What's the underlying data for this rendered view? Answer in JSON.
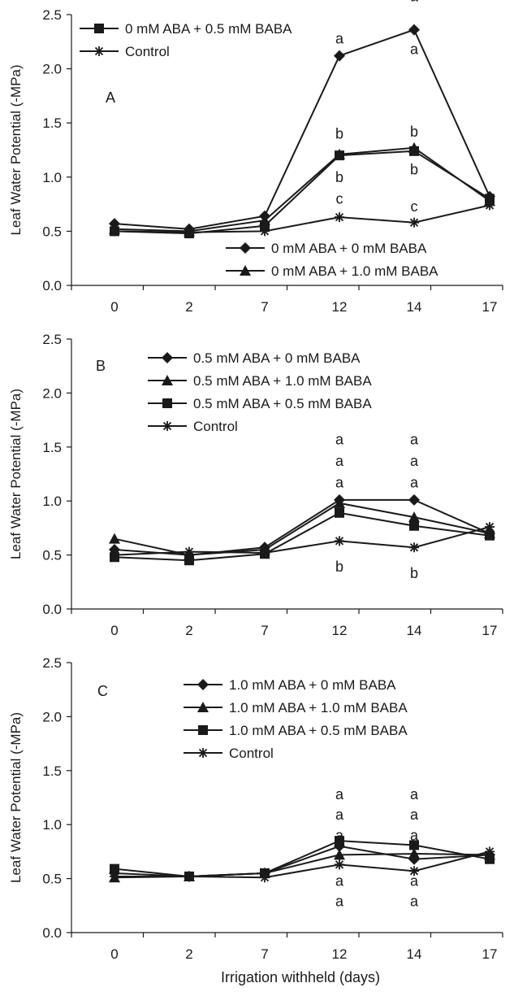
{
  "figure": {
    "xlabel": "Irrigation withheld (days)"
  },
  "colors": {
    "ink": "#1a1a1a",
    "background": "#ffffff"
  },
  "chart_data": [
    {
      "type": "line",
      "panel_label": "A",
      "ylabel": "Leaf Water Potential (-MPa)",
      "xlabel": "",
      "categories": [
        "0",
        "2",
        "7",
        "12",
        "14",
        "17"
      ],
      "ylim": [
        0,
        2.5
      ],
      "yticks": [
        "0.0",
        "0.5",
        "1.0",
        "1.5",
        "2.0",
        "2.5"
      ],
      "grid": false,
      "legend_top": [
        "0 mM ABA + 0.5 mM BABA",
        "Control"
      ],
      "legend_bottom": [
        "0 mM ABA + 0 mM BABA",
        "0 mM ABA + 1.0 mM BABA"
      ],
      "series": [
        {
          "name": "0 mM ABA + 0 mM BABA",
          "marker": "diamond",
          "values": [
            0.57,
            0.52,
            0.64,
            2.12,
            2.36,
            0.82
          ]
        },
        {
          "name": "0 mM ABA + 1.0 mM BABA",
          "marker": "triangle",
          "values": [
            0.52,
            0.5,
            0.6,
            1.21,
            1.27,
            0.78
          ]
        },
        {
          "name": "0 mM ABA + 0.5 mM BABA",
          "marker": "square",
          "values": [
            0.5,
            0.48,
            0.55,
            1.2,
            1.24,
            0.8
          ]
        },
        {
          "name": "Control",
          "marker": "star",
          "values": [
            0.5,
            0.49,
            0.5,
            0.63,
            0.58,
            0.74
          ]
        }
      ],
      "annotations": [
        {
          "text": "a",
          "x": "12",
          "y": 2.28
        },
        {
          "text": "a",
          "x": "14",
          "y": 2.67
        },
        {
          "text": "a",
          "x": "14",
          "y": 2.18
        },
        {
          "text": "b",
          "x": "12",
          "y": 1.4
        },
        {
          "text": "b",
          "x": "12",
          "y": 1.0
        },
        {
          "text": "b",
          "x": "14",
          "y": 1.42
        },
        {
          "text": "b",
          "x": "14",
          "y": 1.07
        },
        {
          "text": "c",
          "x": "12",
          "y": 0.8
        },
        {
          "text": "c",
          "x": "14",
          "y": 0.73
        }
      ]
    },
    {
      "type": "line",
      "panel_label": "B",
      "ylabel": "Leaf Water Potential (-MPa)",
      "xlabel": "",
      "categories": [
        "0",
        "2",
        "7",
        "12",
        "14",
        "17"
      ],
      "ylim": [
        0,
        2.5
      ],
      "yticks": [
        "0.0",
        "0.5",
        "1.0",
        "1.5",
        "2.0",
        "2.5"
      ],
      "grid": false,
      "legend_top": [
        "0.5 mM ABA + 0 mM BABA",
        "0.5 mM ABA + 1.0 mM BABA",
        "0.5 mM ABA + 0.5 mM BABA",
        "Control"
      ],
      "series": [
        {
          "name": "0.5 mM ABA + 0 mM BABA",
          "marker": "diamond",
          "values": [
            0.55,
            0.5,
            0.57,
            1.01,
            1.01,
            0.7
          ]
        },
        {
          "name": "0.5 mM ABA + 1.0 mM BABA",
          "marker": "triangle",
          "values": [
            0.65,
            0.5,
            0.55,
            0.98,
            0.85,
            0.7
          ]
        },
        {
          "name": "0.5 mM ABA + 0.5 mM BABA",
          "marker": "square",
          "values": [
            0.48,
            0.45,
            0.51,
            0.89,
            0.77,
            0.68
          ]
        },
        {
          "name": "Control",
          "marker": "star",
          "values": [
            0.5,
            0.53,
            0.52,
            0.63,
            0.57,
            0.76
          ]
        }
      ],
      "annotations": [
        {
          "text": "a",
          "x": "12",
          "y": 1.57
        },
        {
          "text": "a",
          "x": "12",
          "y": 1.37
        },
        {
          "text": "a",
          "x": "12",
          "y": 1.17
        },
        {
          "text": "a",
          "x": "14",
          "y": 1.57
        },
        {
          "text": "a",
          "x": "14",
          "y": 1.37
        },
        {
          "text": "a",
          "x": "14",
          "y": 1.17
        },
        {
          "text": "b",
          "x": "12",
          "y": 0.39
        },
        {
          "text": "b",
          "x": "14",
          "y": 0.33
        }
      ]
    },
    {
      "type": "line",
      "panel_label": "C",
      "ylabel": "Leaf Water Potential (-MPa)",
      "xlabel": "Irrigation withheld (days)",
      "categories": [
        "0",
        "2",
        "7",
        "12",
        "14",
        "17"
      ],
      "ylim": [
        0,
        2.5
      ],
      "yticks": [
        "0.0",
        "0.5",
        "1.0",
        "1.5",
        "2.0",
        "2.5"
      ],
      "grid": false,
      "legend_top": [
        "1.0 mM ABA + 0 mM BABA",
        "1.0 mM ABA + 1.0 mM BABA",
        "1.0 mM ABA + 0.5 mM BABA",
        "Control"
      ],
      "series": [
        {
          "name": "1.0 mM ABA + 0 mM BABA",
          "marker": "diamond",
          "values": [
            0.55,
            0.52,
            0.55,
            0.8,
            0.68,
            0.72
          ]
        },
        {
          "name": "1.0 mM ABA + 1.0 mM BABA",
          "marker": "triangle",
          "values": [
            0.51,
            0.52,
            0.55,
            0.72,
            0.73,
            0.72
          ]
        },
        {
          "name": "1.0 mM ABA + 0.5 mM BABA",
          "marker": "square",
          "values": [
            0.59,
            0.52,
            0.55,
            0.85,
            0.81,
            0.68
          ]
        },
        {
          "name": "Control",
          "marker": "star",
          "values": [
            0.52,
            0.52,
            0.51,
            0.63,
            0.57,
            0.75
          ]
        }
      ],
      "annotations": [
        {
          "text": "a",
          "x": "12",
          "y": 1.28
        },
        {
          "text": "a",
          "x": "12",
          "y": 1.09
        },
        {
          "text": "a",
          "x": "12",
          "y": 0.9
        },
        {
          "text": "a",
          "x": "12",
          "y": 0.48
        },
        {
          "text": "a",
          "x": "12",
          "y": 0.29
        },
        {
          "text": "a",
          "x": "14",
          "y": 1.28
        },
        {
          "text": "a",
          "x": "14",
          "y": 1.09
        },
        {
          "text": "a",
          "x": "14",
          "y": 0.9
        },
        {
          "text": "a",
          "x": "14",
          "y": 0.48
        },
        {
          "text": "a",
          "x": "14",
          "y": 0.29
        }
      ]
    }
  ]
}
